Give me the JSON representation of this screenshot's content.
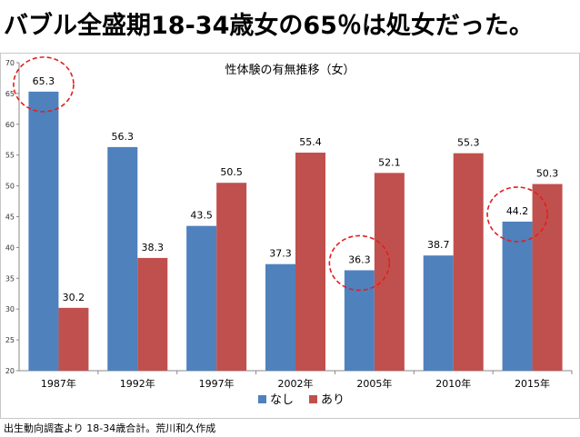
{
  "headline": "バブル全盛期18-34歳女の65％は処女だった。",
  "footnote": "出生動向調査より 18-34歳合計。荒川和久作成",
  "chart_data": {
    "type": "bar",
    "title": "性体験の有無推移（女）",
    "categories": [
      "1987年",
      "1992年",
      "1997年",
      "2002年",
      "2005年",
      "2010年",
      "2015年"
    ],
    "series": [
      {
        "name": "なし",
        "color": "#4f81bd",
        "values": [
          65.3,
          56.3,
          43.5,
          37.3,
          36.3,
          38.7,
          44.2
        ]
      },
      {
        "name": "あり",
        "color": "#c0504d",
        "values": [
          30.2,
          38.3,
          50.5,
          55.4,
          52.1,
          55.3,
          50.3
        ]
      }
    ],
    "ylim": [
      20,
      70
    ],
    "yticks": [
      20,
      25,
      30,
      35,
      40,
      45,
      50,
      55,
      60,
      65,
      70
    ],
    "grid": false,
    "legend": "bottom",
    "highlight_circles": [
      {
        "series": "なし",
        "category": "1987年"
      },
      {
        "series": "なし",
        "category": "2005年"
      },
      {
        "series": "なし",
        "category": "2015年"
      }
    ],
    "highlight_color": "#e02020"
  }
}
